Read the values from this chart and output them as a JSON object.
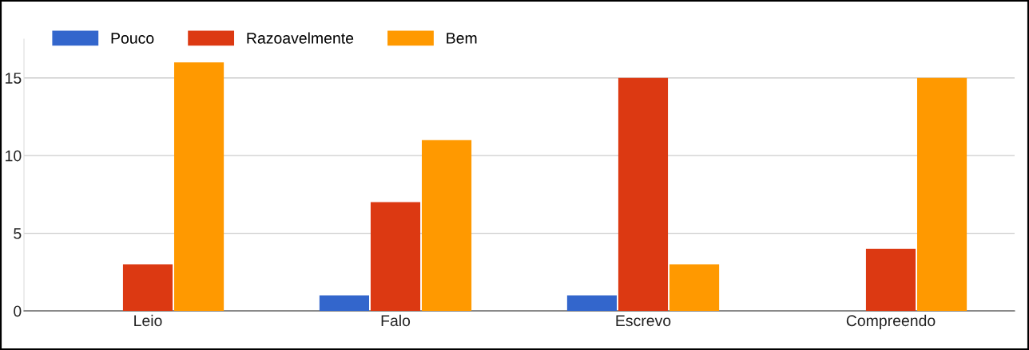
{
  "chart_data": {
    "type": "bar",
    "categories": [
      "Leio",
      "Falo",
      "Escrevo",
      "Compreendo"
    ],
    "series": [
      {
        "name": "Pouco",
        "color": "#3366cc",
        "values": [
          0,
          1,
          1,
          0
        ]
      },
      {
        "name": "Razoavelmente",
        "color": "#dc3912",
        "values": [
          3,
          7,
          15,
          4
        ]
      },
      {
        "name": "Bem",
        "color": "#ff9900",
        "values": [
          16,
          11,
          3,
          15
        ]
      }
    ],
    "ylim": [
      0,
      17.5
    ],
    "yticks": [
      0,
      5,
      10,
      15
    ],
    "grid": "y",
    "legend": "top left"
  }
}
